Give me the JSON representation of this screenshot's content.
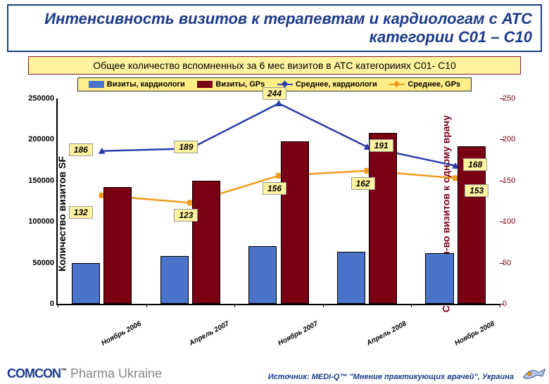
{
  "title": {
    "text": "Интенсивность визитов к терапевтам и кардиологам с АТС категории С01 – С10",
    "color": "#1b3a8a",
    "fontsize": 22
  },
  "subtitle": {
    "text": "Общее количество вспомненных за 6 мес визитов в АТС категорииях С01- С10",
    "fontsize": 14,
    "color": "#000000"
  },
  "legend": {
    "items": [
      {
        "label": "Визиты, кардиологи",
        "type": "bar",
        "color": "#4a74c9"
      },
      {
        "label": "Визиты, GPs",
        "type": "bar",
        "color": "#7a0014"
      },
      {
        "label": "Среднее, кардиологи",
        "type": "line",
        "color": "#2a3fae"
      },
      {
        "label": "Среднее, GPs",
        "type": "line",
        "color": "#f19a1a"
      }
    ],
    "fontsize": 11
  },
  "chart": {
    "type": "bar+line",
    "categories": [
      "Ноябрь 2006",
      "Апрель 2007",
      "Ноябрь 2007",
      "Апрель 2008",
      "Ноябрь 2008"
    ],
    "y_left": {
      "label": "Количество визитов SF",
      "min": 0,
      "max": 250000,
      "step": 50000,
      "ticks": [
        "0",
        "50000",
        "100000",
        "150000",
        "200000",
        "250000"
      ],
      "color": "#000000",
      "label_fontsize": 14
    },
    "y_right": {
      "label": "Среднее кол-во визитов к одному врачу",
      "min": 0,
      "max": 250,
      "step": 50,
      "ticks": [
        "0",
        "50",
        "100",
        "150",
        "200",
        "250"
      ],
      "color": "#7a0014",
      "label_fontsize": 14
    },
    "bars": {
      "width": 0.32,
      "gap": 0.04,
      "series": [
        {
          "name": "Визиты, кардиологи",
          "color": "#4a74c9",
          "values": [
            50000,
            58000,
            70000,
            63000,
            62000
          ]
        },
        {
          "name": "Визиты, GPs",
          "color": "#7a0014",
          "values": [
            142000,
            150000,
            198000,
            208000,
            192000
          ]
        }
      ]
    },
    "lines": {
      "series": [
        {
          "name": "Среднее, кардиологи",
          "color": "#2a3fae",
          "marker": "triangle",
          "values": [
            186,
            189,
            244,
            191,
            168
          ],
          "show_labels": [
            186,
            189,
            244,
            191,
            168
          ]
        },
        {
          "name": "Среднее, GPs",
          "color": "#f19a1a",
          "marker": "square",
          "values": [
            132,
            123,
            156,
            162,
            153
          ],
          "show_labels": [
            132,
            123,
            156,
            162,
            153
          ]
        }
      ],
      "line_width": 2.5
    },
    "background_color": "#ffffff"
  },
  "footer": {
    "brand_main": "COMCON",
    "brand_sub": " Pharma Ukraine",
    "source": "Источник: MEDI-Q™ \"Мнение практикующих врачей\", Украина"
  },
  "colors": {
    "title_border": "#1b3a8a",
    "subtitle_bg": "#fff3a0",
    "subtitle_border": "#8a1a1a",
    "legend_bg": "#ffee88",
    "label_bg": "#fff3a0"
  }
}
